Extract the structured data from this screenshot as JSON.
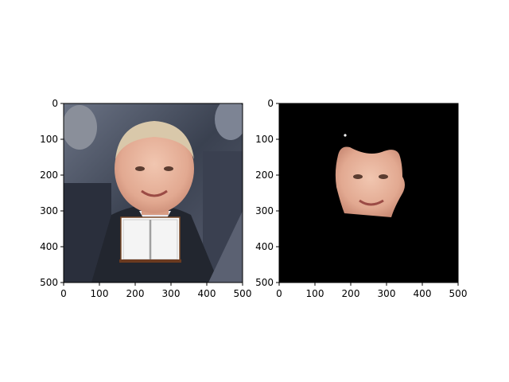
{
  "chart_data": [
    {
      "type": "image",
      "title": "",
      "xlabel": "",
      "ylabel": "",
      "xlim": [
        0,
        500
      ],
      "ylim": [
        500,
        0
      ],
      "xticks": [
        0,
        100,
        200,
        300,
        400,
        500
      ],
      "yticks": [
        0,
        100,
        200,
        300,
        400,
        500
      ],
      "image_content": "photo of a man's face in a crowd with an open book image pasted over the lower face",
      "overlay": {
        "label": "open-book",
        "x_range": [
          160,
          325
        ],
        "y_range": [
          320,
          445
        ]
      }
    },
    {
      "type": "image",
      "title": "",
      "xlabel": "",
      "ylabel": "",
      "xlim": [
        0,
        500
      ],
      "ylim": [
        500,
        0
      ],
      "xticks": [
        0,
        100,
        200,
        300,
        400,
        500
      ],
      "yticks": [
        0,
        100,
        200,
        300,
        400,
        500
      ],
      "image_content": "segmented face region on black background",
      "background_color": "#000000",
      "mask_region": {
        "x_range": [
          160,
          355
        ],
        "y_range": [
          120,
          315
        ]
      }
    }
  ],
  "colors": {
    "frame": "#000000",
    "background": "#ffffff",
    "mask_background": "#000000",
    "skin": "#e9b6a0",
    "suit": "#2b2f3a",
    "crowd": "#4a5262",
    "hair": "#d8c7a8"
  }
}
